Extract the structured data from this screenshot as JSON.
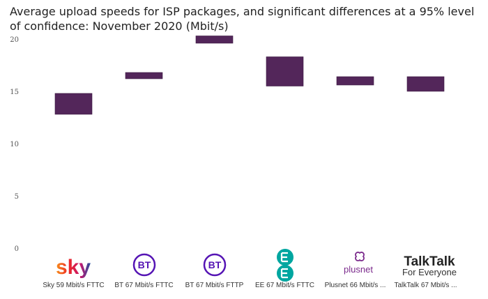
{
  "chart_data": {
    "type": "floating-bar",
    "title": "Average upload speeds for ISP packages, and significant differences at a 95% level of confidence: November 2020 (Mbit/s)",
    "xlabel": "",
    "ylabel": "",
    "ylim": [
      0,
      20
    ],
    "yticks": [
      0,
      5,
      10,
      15,
      20
    ],
    "grid": false,
    "bar_color": "#53265a",
    "categories": [
      "Sky 59 Mbit/s FTTC",
      "BT 67 Mbit/s FTTC",
      "BT 67 Mbit/s FTTP",
      "EE 67 Mbit/s FTTC",
      "Plusnet 66 Mbit/s ...",
      "TalkTalk 67 Mbit/s ..."
    ],
    "series": [
      {
        "name": "95% confidence interval",
        "low": [
          12.8,
          16.2,
          19.6,
          15.5,
          15.6,
          15.0
        ],
        "high": [
          14.8,
          16.8,
          20.3,
          18.3,
          16.4,
          16.4
        ]
      }
    ]
  },
  "logos": {
    "sky": {
      "text": "sky",
      "icon": "sky-logo"
    },
    "bt1": {
      "text": "BT",
      "icon": "bt-logo",
      "color": "#5514b4"
    },
    "bt2": {
      "text": "BT",
      "icon": "bt-logo",
      "color": "#5514b4"
    },
    "ee": {
      "text": "EE",
      "icon": "ee-logo",
      "color": "#00a6a0"
    },
    "plusnet": {
      "text": "plusnet",
      "icon": "plusnet-logo",
      "color": "#7b2a8c"
    },
    "talktalk": {
      "line1": "TalkTalk",
      "line2": "For Everyone",
      "icon": "talktalk-logo"
    }
  }
}
